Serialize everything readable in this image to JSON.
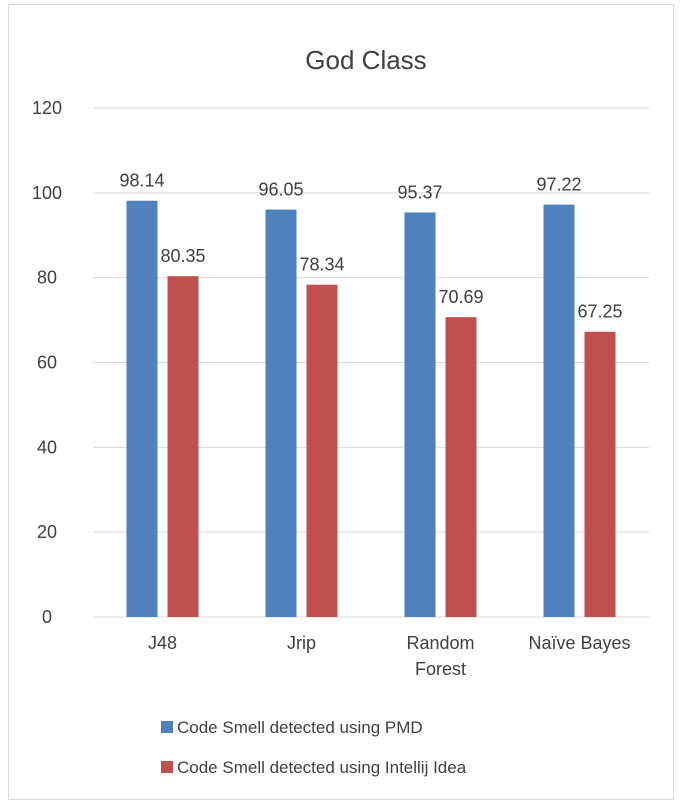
{
  "chart_data": {
    "type": "bar",
    "title": "God Class",
    "categories": [
      [
        "J48"
      ],
      [
        "Jrip"
      ],
      [
        "Random",
        "Forest"
      ],
      [
        "Naïve Bayes"
      ]
    ],
    "series": [
      {
        "name": "Code Smell detected using PMD",
        "color": "#4f81bd",
        "values": [
          98.14,
          96.05,
          95.37,
          97.22
        ],
        "labels": [
          "98.14",
          "96.05",
          "95.37",
          "97.22"
        ]
      },
      {
        "name": "Code Smell detected using Intellij Idea",
        "color": "#c0504d",
        "values": [
          80.35,
          78.34,
          70.69,
          67.25
        ],
        "labels": [
          "80.35",
          "78.34",
          "70.69",
          "67.25"
        ]
      }
    ],
    "ylim": [
      0,
      120
    ],
    "yticks": [
      "0",
      "20",
      "40",
      "60",
      "80",
      "100",
      "120"
    ],
    "grid": true,
    "legend_position": "bottom"
  }
}
